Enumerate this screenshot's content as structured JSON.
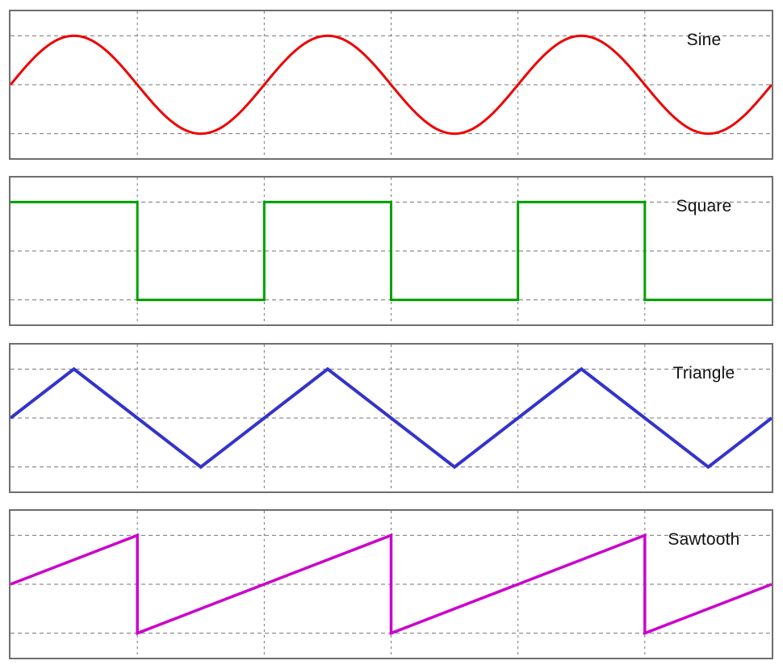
{
  "page": {
    "background": "#ffffff",
    "panel_border_color": "#6e6e6e",
    "grid_color": "#757575",
    "label_color": "#111111"
  },
  "chart_data": [
    {
      "type": "line",
      "wave": "sine",
      "label": "Sine",
      "color": "#ee0000",
      "stroke_width": 3,
      "periods": 3,
      "amplitude": 1,
      "xlim": [
        0,
        3
      ],
      "ylim": [
        -1.5,
        1.5
      ],
      "x_gridlines": [
        0.5,
        1,
        1.5,
        2,
        2.5
      ],
      "y_gridlines": [
        -1,
        0,
        1
      ],
      "grid_style": "dashed",
      "legend_position": "top-right"
    },
    {
      "type": "line",
      "wave": "square",
      "label": "Square",
      "color": "#00a000",
      "stroke_width": 3,
      "periods": 3,
      "amplitude": 1,
      "xlim": [
        0,
        3
      ],
      "ylim": [
        -1.5,
        1.5
      ],
      "x_gridlines": [
        0.5,
        1,
        1.5,
        2,
        2.5
      ],
      "y_gridlines": [
        -1,
        0,
        1
      ],
      "grid_style": "dashed",
      "legend_position": "top-right"
    },
    {
      "type": "line",
      "wave": "triangle",
      "label": "Triangle",
      "color": "#3333cc",
      "stroke_width": 4,
      "periods": 3,
      "amplitude": 1,
      "xlim": [
        0,
        3
      ],
      "ylim": [
        -1.5,
        1.5
      ],
      "x_gridlines": [
        0.5,
        1,
        1.5,
        2,
        2.5
      ],
      "y_gridlines": [
        -1,
        0,
        1
      ],
      "grid_style": "dashed",
      "legend_position": "top-right"
    },
    {
      "type": "line",
      "wave": "sawtooth",
      "label": "Sawtooth",
      "color": "#cc00cc",
      "stroke_width": 3.5,
      "periods": 3,
      "amplitude": 1,
      "xlim": [
        0,
        3
      ],
      "ylim": [
        -1.5,
        1.5
      ],
      "x_gridlines": [
        0.5,
        1,
        1.5,
        2,
        2.5
      ],
      "y_gridlines": [
        -1,
        0,
        1
      ],
      "grid_style": "dashed",
      "legend_position": "top-right"
    }
  ]
}
